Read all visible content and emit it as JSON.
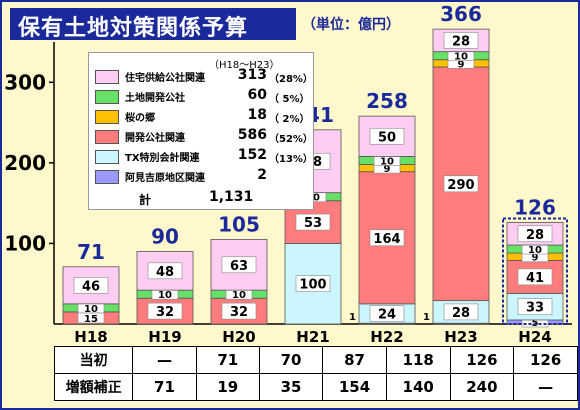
{
  "title": "保有土地対策関係予算",
  "unit": "（単位：億円）",
  "legend": {
    "period": "（H18～H23）",
    "items": [
      {
        "name": "住宅供給公社関連",
        "value": "313",
        "pct": "（28%）",
        "color": "#ffccf2"
      },
      {
        "name": "土地開発公社",
        "value": "60",
        "pct": "（ 5%）",
        "color": "#66e066"
      },
      {
        "name": "桜の郷",
        "value": "18",
        "pct": "（ 2%）",
        "color": "#ffc000"
      },
      {
        "name": "開発公社関連",
        "value": "586",
        "pct": "（52%）",
        "color": "#ff7c7c"
      },
      {
        "name": "TX特別会計関連",
        "value": "152",
        "pct": "（13%）",
        "color": "#ccf6ff"
      },
      {
        "name": "阿見吉原地区関連",
        "value": "2",
        "pct": "",
        "color": "#9999ff"
      }
    ],
    "total_label": "計",
    "total_value": "1,131"
  },
  "chart_data": {
    "type": "bar",
    "categories": [
      "H18",
      "H19",
      "H20",
      "H21",
      "H22",
      "H23",
      "H24"
    ],
    "totals": [
      71,
      90,
      105,
      241,
      258,
      366,
      126
    ],
    "ylim": [
      0,
      350
    ],
    "yticks": [
      100,
      200,
      300
    ],
    "series": [
      {
        "name": "阿見吉原地区関連",
        "color": "#9999ff",
        "values": [
          0,
          0,
          0,
          0,
          1,
          1,
          5
        ],
        "labels": [
          "",
          "",
          "",
          "",
          "1",
          "1",
          "5"
        ]
      },
      {
        "name": "TX特別会計関連",
        "color": "#ccf6ff",
        "values": [
          0,
          0,
          0,
          100,
          24,
          28,
          33
        ],
        "labels": [
          "",
          "",
          "",
          "100",
          "24",
          "28",
          "33"
        ]
      },
      {
        "name": "開発公社関連",
        "color": "#ff7c7c",
        "values": [
          15,
          32,
          32,
          53,
          164,
          290,
          41
        ],
        "labels": [
          "15",
          "32",
          "32",
          "53",
          "164",
          "290",
          "41"
        ]
      },
      {
        "name": "桜の郷",
        "color": "#ffc000",
        "values": [
          0,
          0,
          0,
          0,
          9,
          9,
          9
        ],
        "labels": [
          "",
          "",
          "",
          "",
          "9",
          "9",
          "9"
        ]
      },
      {
        "name": "土地開発公社",
        "color": "#66e066",
        "values": [
          10,
          10,
          10,
          10,
          10,
          10,
          10
        ],
        "labels": [
          "10",
          "10",
          "10",
          "10",
          "10",
          "10",
          "10"
        ]
      },
      {
        "name": "住宅供給公社関連",
        "color": "#ffccf2",
        "values": [
          46,
          48,
          63,
          78,
          50,
          28,
          28
        ],
        "labels": [
          "46",
          "48",
          "63",
          "78",
          "50",
          "28",
          "28"
        ]
      }
    ]
  },
  "table": {
    "rows": [
      {
        "label": "当初",
        "values": [
          "—",
          "71",
          "70",
          "87",
          "118",
          "126",
          "126"
        ]
      },
      {
        "label": "増額補正",
        "values": [
          "71",
          "19",
          "35",
          "154",
          "140",
          "240",
          "—"
        ]
      }
    ]
  }
}
